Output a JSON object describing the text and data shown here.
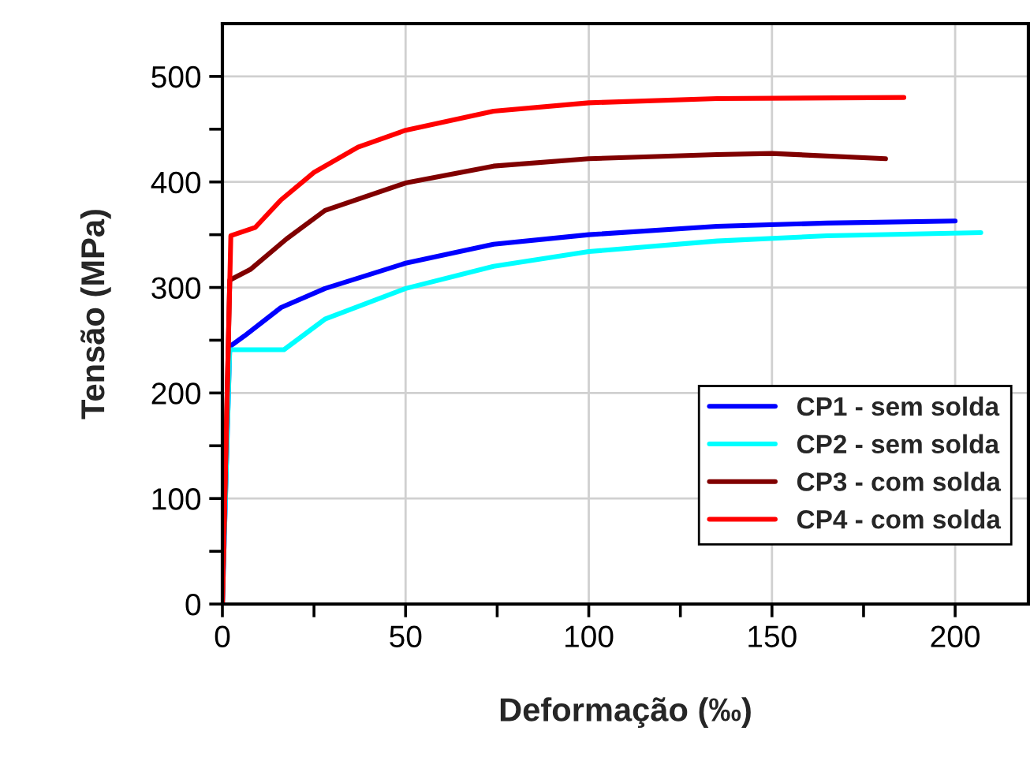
{
  "chart_data": {
    "type": "line",
    "xlabel": "Deformação (‰)",
    "ylabel": "Tensão (MPa)",
    "xlim": [
      0,
      220
    ],
    "ylim": [
      0,
      550
    ],
    "xticks": [
      0,
      {
        "value": 25,
        "label": null
      },
      50,
      {
        "value": 75,
        "label": null
      },
      100,
      {
        "value": 125,
        "label": null
      },
      150,
      {
        "value": 175,
        "label": null
      },
      200
    ],
    "yticks": [
      0,
      {
        "value": 50,
        "label": null
      },
      100,
      {
        "value": 150,
        "label": null
      },
      200,
      {
        "value": 250,
        "label": null
      },
      300,
      {
        "value": 350,
        "label": null
      },
      400,
      {
        "value": 450,
        "label": null
      },
      500
    ],
    "grid": true,
    "legend": "bottom right",
    "line_style": "solid",
    "series": [
      {
        "name": "CP1 - sem solda",
        "color": "#0000ff",
        "x": [
          0,
          2,
          6,
          16,
          28,
          50,
          74,
          100,
          135,
          165,
          200
        ],
        "values": [
          0,
          244,
          254,
          281,
          299,
          323,
          341,
          350,
          358,
          361,
          363
        ]
      },
      {
        "name": "CP2 - sem solda",
        "color": "#00ffff",
        "x": [
          0,
          2,
          16.8,
          28,
          50,
          74,
          100,
          135,
          165,
          207
        ],
        "values": [
          0,
          241,
          241,
          270,
          299,
          320,
          334,
          344,
          349,
          352
        ]
      },
      {
        "name": "CP3 - com solda",
        "color": "#800000",
        "x": [
          0,
          2,
          7.6,
          17.5,
          28,
          50,
          74,
          100,
          135,
          150,
          181
        ],
        "values": [
          0,
          307,
          317,
          346,
          373,
          399,
          415,
          422,
          426,
          427,
          422
        ]
      },
      {
        "name": "CP4 - com solda",
        "color": "#ff0000",
        "x": [
          0,
          2.3,
          9,
          16,
          25,
          37,
          50,
          74,
          100,
          135,
          186
        ],
        "values": [
          0,
          349,
          357,
          383,
          409,
          433,
          449,
          467,
          475,
          479,
          480
        ]
      }
    ]
  }
}
